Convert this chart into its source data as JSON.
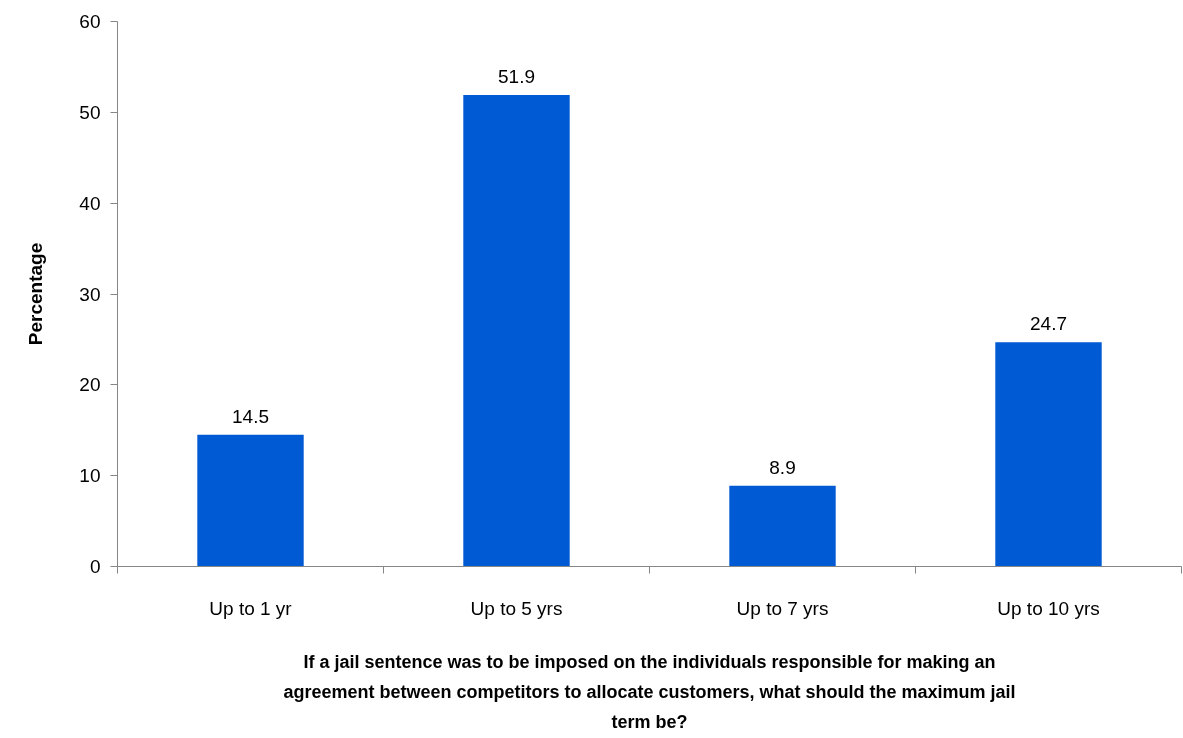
{
  "chart_data": {
    "type": "bar",
    "xlabel": "If a jail sentence was to be imposed on the individuals responsible for making an agreement between competitors to allocate customers, what should the maximum jail term be?",
    "ylabel": "Percentage",
    "categories": [
      "Up to 1 yr",
      "Up to 5 yrs",
      "Up to 7 yrs",
      "Up to 10 yrs"
    ],
    "values": [
      14.5,
      51.9,
      8.9,
      24.7
    ],
    "color": "#005ad3",
    "ylim": [
      0,
      60
    ],
    "yticks": [
      0,
      10,
      20,
      30,
      40,
      50,
      60
    ],
    "data_labels": true,
    "grid": false
  }
}
